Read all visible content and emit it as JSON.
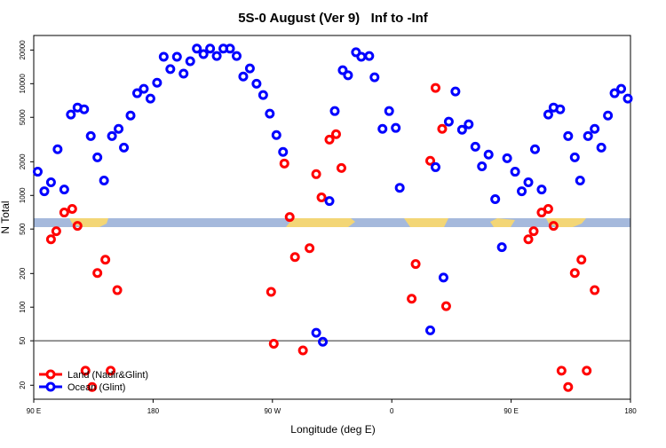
{
  "chart_data": {
    "type": "scatter",
    "title": "5S-0 August (Ver 9)   Inf to -Inf",
    "x_label": "Longitude (deg E)",
    "y_label": "N Total",
    "xlim": [
      90,
      540
    ],
    "xticks": [
      {
        "value": 90,
        "label": "90 E"
      },
      {
        "value": 180,
        "label": "180"
      },
      {
        "value": 270,
        "label": "90 W"
      },
      {
        "value": 360,
        "label": "0"
      },
      {
        "value": 450,
        "label": "90 E"
      },
      {
        "value": 540,
        "label": "180"
      }
    ],
    "ylim": [
      15,
      27000
    ],
    "yscale": "log",
    "yticks": [
      20,
      50,
      100,
      200,
      500,
      1000,
      2000,
      5000,
      10000,
      20000
    ],
    "hline": 50,
    "legend": "bottom-left",
    "series": [
      {
        "name": "Land (Nadir&Glint)",
        "color": "#ff0000",
        "x": [
          103,
          107,
          113,
          119,
          123,
          129,
          134,
          138,
          144,
          148,
          153,
          269,
          271,
          279,
          283,
          287,
          293,
          298,
          303,
          307,
          313,
          318,
          322,
          375,
          378,
          389,
          393,
          398,
          401,
          463,
          467,
          473,
          478,
          482,
          488,
          493,
          498,
          503,
          507,
          513
        ],
        "values": [
          405,
          478,
          703,
          757,
          534,
          27,
          19.3,
          202,
          266,
          27,
          142,
          137,
          47,
          1930,
          641,
          281,
          41,
          337,
          1550,
          960,
          3160,
          3530,
          1760,
          119,
          243,
          2040,
          9170,
          3940,
          102,
          405,
          478,
          703,
          757,
          534,
          27,
          19.3,
          202,
          266,
          27,
          142
        ]
      },
      {
        "name": "Ocean (Glint)",
        "color": "#0000ff",
        "x": [
          93,
          98,
          103,
          108,
          113,
          118,
          123,
          128,
          133,
          138,
          143,
          149,
          154,
          158,
          163,
          168,
          173,
          178,
          183,
          188,
          193,
          198,
          203,
          208,
          213,
          218,
          223,
          228,
          233,
          238,
          243,
          248,
          253,
          258,
          263,
          268,
          273,
          278,
          303,
          308,
          313,
          317,
          323,
          327,
          333,
          337,
          343,
          347,
          353,
          358,
          363,
          366,
          389,
          393,
          399,
          403,
          408,
          413,
          418,
          423,
          428,
          433,
          438,
          443,
          447,
          453,
          458,
          463,
          468,
          473,
          478,
          482,
          487,
          493,
          498,
          502,
          508,
          513,
          518,
          523,
          528,
          533,
          538
        ],
        "values": [
          1630,
          1090,
          1310,
          2590,
          1130,
          5290,
          6120,
          5900,
          3400,
          2190,
          1360,
          3400,
          3940,
          2680,
          5190,
          8220,
          9000,
          7360,
          10200,
          17400,
          13500,
          17400,
          12300,
          15900,
          20600,
          18400,
          20600,
          17700,
          20600,
          20600,
          17700,
          11600,
          13700,
          10000,
          7920,
          5390,
          3470,
          2450,
          59,
          49,
          890,
          5690,
          13200,
          11900,
          19100,
          17400,
          17700,
          11400,
          3940,
          5690,
          4020,
          1170,
          62,
          1790,
          184,
          4570,
          8510,
          3870,
          4330,
          2730,
          1820,
          2320,
          925,
          344,
          2150,
          1630,
          1090,
          1310,
          2590,
          1130,
          5290,
          6120,
          5900,
          3400,
          2190,
          1360,
          3400,
          3940,
          2680,
          5190,
          8220,
          9000,
          7360
        ]
      }
    ]
  }
}
